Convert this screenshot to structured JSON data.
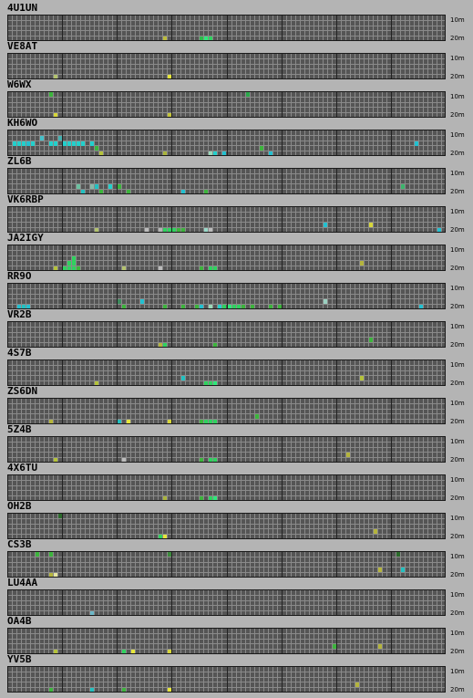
{
  "colors": {
    "background": "#b4b4b4",
    "grid_fill": "#555555",
    "grid_line": "#8a8a8a",
    "hour_divider": "#222222",
    "border": "#1a1a1a"
  },
  "grid": {
    "hours": 8,
    "columns_per_hour": 12,
    "rows": 5
  },
  "band_labels": {
    "top": "10m",
    "bottom": "20m"
  },
  "stations": [
    {
      "call": "4U1UN",
      "marks": [
        [
          34,
          4,
          "#bcbc3c"
        ],
        [
          42,
          4,
          "#2eb84a"
        ],
        [
          43,
          4,
          "#2ee87a"
        ],
        [
          44,
          4,
          "#2ed25e"
        ]
      ]
    },
    {
      "call": "VE8AT",
      "marks": [
        [
          10,
          4,
          "#b2c26e"
        ],
        [
          35,
          4,
          "#e6e63a"
        ]
      ]
    },
    {
      "call": "W6WX",
      "marks": [
        [
          9,
          0,
          "#3cb43c"
        ],
        [
          10,
          4,
          "#d6d63a"
        ],
        [
          52,
          0,
          "#2aa84a"
        ],
        [
          35,
          4,
          "#c4c43a"
        ]
      ]
    },
    {
      "call": "KH6WO",
      "marks": [
        [
          1,
          2,
          "#22d0cc"
        ],
        [
          2,
          2,
          "#22d0cc"
        ],
        [
          3,
          2,
          "#22d0cc"
        ],
        [
          4,
          2,
          "#22c0d0"
        ],
        [
          5,
          2,
          "#22d0cc"
        ],
        [
          7,
          1,
          "#44c0c8"
        ],
        [
          9,
          2,
          "#22d0cc"
        ],
        [
          10,
          2,
          "#22d0cc"
        ],
        [
          11,
          1,
          "#44b0b0"
        ],
        [
          12,
          2,
          "#22d0cc"
        ],
        [
          13,
          2,
          "#22d0cc"
        ],
        [
          14,
          2,
          "#22d0cc"
        ],
        [
          15,
          2,
          "#22d0cc"
        ],
        [
          16,
          2,
          "#22d0cc"
        ],
        [
          18,
          2,
          "#22d0cc"
        ],
        [
          19,
          3,
          "#3cb43c"
        ],
        [
          20,
          4,
          "#b4c23a"
        ],
        [
          34,
          4,
          "#aab43c"
        ],
        [
          44,
          4,
          "#9ad8b8"
        ],
        [
          45,
          4,
          "#22d0cc"
        ],
        [
          47,
          4,
          "#22c0d0"
        ],
        [
          55,
          3,
          "#3cb43c"
        ],
        [
          57,
          4,
          "#22c0d0"
        ],
        [
          89,
          2,
          "#22c0d0"
        ]
      ]
    },
    {
      "call": "ZL6B",
      "marks": [
        [
          15,
          3,
          "#6cc0a0"
        ],
        [
          16,
          4,
          "#22c0c0"
        ],
        [
          18,
          3,
          "#8ab8a8"
        ],
        [
          19,
          3,
          "#22c0c0"
        ],
        [
          20,
          4,
          "#3cb43c"
        ],
        [
          22,
          3,
          "#22d0cc"
        ],
        [
          24,
          3,
          "#3cb43c"
        ],
        [
          26,
          4,
          "#3cb43c"
        ],
        [
          38,
          4,
          "#22c0d0"
        ],
        [
          43,
          4,
          "#3cb43c"
        ],
        [
          86,
          3,
          "#3cb46c"
        ]
      ]
    },
    {
      "call": "VK6RBP",
      "marks": [
        [
          19,
          4,
          "#b2c26e"
        ],
        [
          30,
          4,
          "#bcbcbc"
        ],
        [
          33,
          4,
          "#b4b4b4"
        ],
        [
          34,
          4,
          "#2ed25e"
        ],
        [
          35,
          4,
          "#2ed25e"
        ],
        [
          36,
          4,
          "#2ed25e"
        ],
        [
          37,
          4,
          "#3cb43c"
        ],
        [
          38,
          4,
          "#3cb43c"
        ],
        [
          43,
          4,
          "#9ad8c8"
        ],
        [
          44,
          4,
          "#bcbcbc"
        ],
        [
          69,
          3,
          "#22c0d0"
        ],
        [
          79,
          3,
          "#d6d63a"
        ],
        [
          94,
          4,
          "#22c0d0"
        ]
      ]
    },
    {
      "call": "JA2IGY",
      "marks": [
        [
          14,
          2,
          "#2ed25e"
        ],
        [
          13,
          3,
          "#2ed25e"
        ],
        [
          14,
          3,
          "#2ed25e"
        ],
        [
          12,
          4,
          "#2ed25e"
        ],
        [
          13,
          4,
          "#2ed25e"
        ],
        [
          14,
          4,
          "#2ed25e"
        ],
        [
          15,
          4,
          "#3cb43c"
        ],
        [
          10,
          4,
          "#b4c23a"
        ],
        [
          25,
          4,
          "#b4c26e"
        ],
        [
          33,
          4,
          "#bcbcbc"
        ],
        [
          42,
          4,
          "#3cb43c"
        ],
        [
          44,
          4,
          "#2ed25e"
        ],
        [
          45,
          4,
          "#2ed25e"
        ],
        [
          77,
          3,
          "#b4b43c"
        ]
      ]
    },
    {
      "call": "RR9O",
      "marks": [
        [
          2,
          4,
          "#22c0d0"
        ],
        [
          3,
          4,
          "#22c0c0"
        ],
        [
          4,
          4,
          "#22c0d0"
        ],
        [
          24,
          3,
          "#3c8a5c"
        ],
        [
          25,
          4,
          "#3cb43c"
        ],
        [
          29,
          3,
          "#22c0d0"
        ],
        [
          34,
          4,
          "#3cb43c"
        ],
        [
          38,
          4,
          "#3cb43c"
        ],
        [
          41,
          4,
          "#3cb43c"
        ],
        [
          42,
          4,
          "#22c0d0"
        ],
        [
          44,
          4,
          "#9ad8b8"
        ],
        [
          46,
          4,
          "#22d0cc"
        ],
        [
          47,
          4,
          "#2ed25e"
        ],
        [
          48,
          4,
          "#2ee87a"
        ],
        [
          49,
          4,
          "#2ed25e"
        ],
        [
          50,
          4,
          "#2ed25e"
        ],
        [
          51,
          4,
          "#3cb43c"
        ],
        [
          53,
          4,
          "#3cb43c"
        ],
        [
          57,
          4,
          "#3cb43c"
        ],
        [
          59,
          4,
          "#3cb43c"
        ],
        [
          69,
          3,
          "#9ad0c0"
        ],
        [
          90,
          4,
          "#22c0d0"
        ]
      ]
    },
    {
      "call": "VR2B",
      "marks": [
        [
          33,
          4,
          "#b4b43c"
        ],
        [
          34,
          4,
          "#2ed25e"
        ],
        [
          45,
          4,
          "#3cb43c"
        ],
        [
          79,
          3,
          "#3cb43c"
        ]
      ]
    },
    {
      "call": "4S7B",
      "marks": [
        [
          19,
          4,
          "#b4c23a"
        ],
        [
          38,
          3,
          "#22c0c0"
        ],
        [
          43,
          4,
          "#2ed25e"
        ],
        [
          44,
          4,
          "#2ed25e"
        ],
        [
          45,
          4,
          "#2ee87a"
        ],
        [
          77,
          3,
          "#b4c23a"
        ]
      ]
    },
    {
      "call": "ZS6DN",
      "marks": [
        [
          9,
          4,
          "#b4b43c"
        ],
        [
          24,
          4,
          "#22c0c0"
        ],
        [
          26,
          4,
          "#e6e63a"
        ],
        [
          35,
          4,
          "#d6d63a"
        ],
        [
          42,
          4,
          "#3cb43c"
        ],
        [
          43,
          4,
          "#2ed25e"
        ],
        [
          44,
          4,
          "#2ed25e"
        ],
        [
          45,
          4,
          "#2ed25e"
        ],
        [
          54,
          3,
          "#3cb43c"
        ]
      ]
    },
    {
      "call": "5Z4B",
      "marks": [
        [
          10,
          4,
          "#b4c23a"
        ],
        [
          25,
          4,
          "#bcbcbc"
        ],
        [
          42,
          4,
          "#3cb43c"
        ],
        [
          44,
          4,
          "#2ed25e"
        ],
        [
          45,
          4,
          "#2ed25e"
        ],
        [
          74,
          3,
          "#b4b43c"
        ]
      ]
    },
    {
      "call": "4X6TU",
      "marks": [
        [
          34,
          4,
          "#aab43c"
        ],
        [
          42,
          4,
          "#3cb43c"
        ],
        [
          44,
          4,
          "#2ed25e"
        ],
        [
          45,
          4,
          "#2ee87a"
        ]
      ]
    },
    {
      "call": "OH2B",
      "marks": [
        [
          11,
          0,
          "#2a6a2a"
        ],
        [
          33,
          4,
          "#2ed25e"
        ],
        [
          34,
          4,
          "#e6e63a"
        ],
        [
          80,
          3,
          "#b4b43c"
        ]
      ]
    },
    {
      "call": "CS3B",
      "marks": [
        [
          6,
          0,
          "#3cb43c"
        ],
        [
          9,
          0,
          "#3cb43c"
        ],
        [
          9,
          4,
          "#b4b43c"
        ],
        [
          10,
          4,
          "#e6e6a0"
        ],
        [
          35,
          0,
          "#3c8a3c"
        ],
        [
          85,
          0,
          "#2a6a2a"
        ],
        [
          81,
          3,
          "#b4b43c"
        ],
        [
          86,
          3,
          "#22c0c0"
        ]
      ]
    },
    {
      "call": "LU4AA",
      "marks": [
        [
          18,
          4,
          "#6cb8c8"
        ]
      ]
    },
    {
      "call": "OA4B",
      "marks": [
        [
          10,
          4,
          "#b4c23a"
        ],
        [
          25,
          4,
          "#2ed25e"
        ],
        [
          27,
          4,
          "#e6e63a"
        ],
        [
          35,
          4,
          "#d6d63a"
        ],
        [
          71,
          3,
          "#3cb43c"
        ],
        [
          81,
          3,
          "#b4b43c"
        ]
      ]
    },
    {
      "call": "YV5B",
      "marks": [
        [
          9,
          4,
          "#3cb43c"
        ],
        [
          18,
          4,
          "#22c0c0"
        ],
        [
          25,
          4,
          "#3cb43c"
        ],
        [
          35,
          4,
          "#e6e63a"
        ],
        [
          76,
          3,
          "#b4b43c"
        ]
      ]
    }
  ]
}
